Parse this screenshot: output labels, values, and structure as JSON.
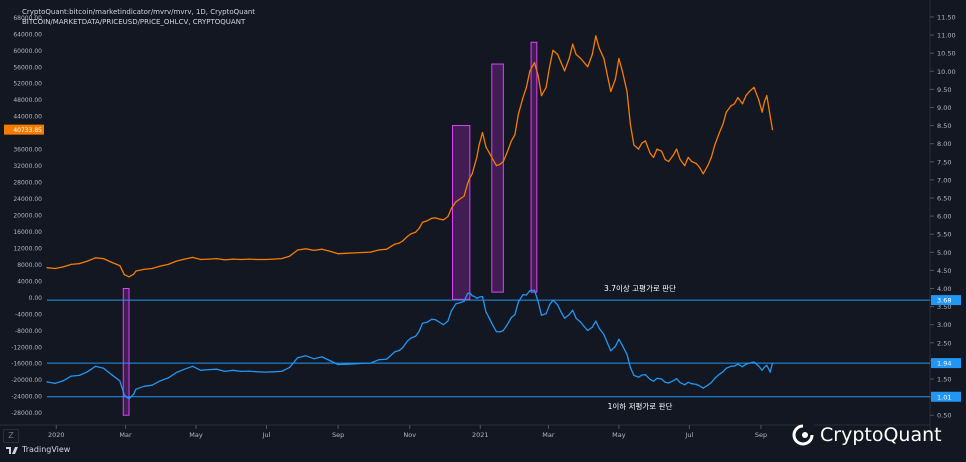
{
  "header": {
    "line1": "CryptoQuant:bitcoin/marketindicator/mvrv/mvrv, 1D, CryptoQuant",
    "line2": "BITCOIN/MARKETDATA/PRICEUSD/PRICE_OHLCV, CRYPTOQUANT"
  },
  "branding": {
    "tradingview": "TradingView",
    "cryptoquant": "CryptoQuant"
  },
  "colors": {
    "background": "#131722",
    "price": "#f57c00",
    "mvrv": "#2196f3",
    "highlight": "#9c27b0",
    "refline": "#2196f3"
  },
  "chart_data": {
    "type": "line",
    "x_ticks": [
      "2020",
      "Mar",
      "May",
      "Jul",
      "Sep",
      "Nov",
      "2021",
      "Mar",
      "May",
      "Jul",
      "Sep"
    ],
    "left_axis": {
      "ticks": [
        68000,
        64000,
        60000,
        56000,
        52000,
        48000,
        44000,
        36000,
        32000,
        28000,
        24000,
        20000,
        16000,
        12000,
        8000,
        4000,
        0,
        -4000,
        -8000,
        -12000,
        -16000,
        -20000,
        -24000,
        -28000
      ],
      "tick_labels": [
        "68000.00",
        "64000.00",
        "60000.00",
        "56000.00",
        "52000.00",
        "48000.00",
        "44000.00",
        "36000.00",
        "32000.00",
        "28000.00",
        "24000.00",
        "20000.00",
        "16000.00",
        "12000.00",
        "8000.00",
        "4000.00",
        "0.00",
        "-4000.00",
        "-8000.00",
        "-12000.00",
        "-16000.00",
        "-20000.00",
        "-24000.00",
        "-28000.00"
      ],
      "range": [
        -31000,
        71000
      ],
      "last_label": "40733.85"
    },
    "right_axis": {
      "ticks": [
        11.5,
        11.0,
        10.5,
        10.0,
        9.5,
        9.0,
        8.5,
        8.0,
        7.5,
        7.0,
        6.5,
        6.0,
        5.5,
        5.0,
        4.5,
        4.0,
        3.5,
        3.0,
        2.5,
        2.0,
        1.5,
        1.0,
        0.5
      ],
      "tick_labels": [
        "11.50",
        "11.00",
        "10.50",
        "10.00",
        "9.50",
        "9.00",
        "8.50",
        "8.00",
        "7.50",
        "7.00",
        "6.50",
        "6.00",
        "5.50",
        "5.00",
        "4.50",
        "4.00",
        "3.50",
        "3.00",
        "2.50",
        "2.00",
        "1.50",
        "1.00",
        "0.50"
      ],
      "range": [
        0.23,
        11.83
      ],
      "marker_labels": [
        "3.68",
        "1.94",
        "1.01"
      ]
    },
    "series": [
      {
        "name": "PRICE_OHLCV",
        "axis": "left",
        "x": [
          0,
          7,
          14,
          21,
          28,
          35,
          42,
          49,
          56,
          63,
          67,
          71,
          75,
          77,
          84,
          91,
          98,
          105,
          112,
          119,
          126,
          133,
          140,
          147,
          154,
          161,
          168,
          175,
          182,
          189,
          196,
          203,
          210,
          217,
          224,
          231,
          238,
          245,
          252,
          259,
          266,
          273,
          280,
          287,
          294,
          301,
          305,
          308,
          312,
          315,
          319,
          322,
          325,
          329,
          333,
          336,
          340,
          343,
          347,
          350,
          354,
          357,
          361,
          364,
          366,
          368,
          370,
          372,
          374,
          377,
          380,
          383,
          386,
          389,
          392,
          395,
          398,
          402,
          405,
          408,
          412,
          415,
          418,
          422,
          425,
          428,
          432,
          435,
          438,
          442,
          445,
          448,
          452,
          455,
          458,
          462,
          465,
          468,
          472,
          475,
          478,
          482,
          485,
          488,
          492,
          495,
          498,
          502,
          505,
          508,
          512,
          515,
          518,
          522,
          525,
          528,
          532,
          535,
          538,
          542,
          545,
          548,
          552,
          555,
          558,
          562,
          565,
          568,
          572,
          575,
          578,
          582,
          585,
          588,
          592,
          595,
          598,
          602,
          605,
          608,
          612,
          616,
          619,
          621,
          623,
          626,
          628
        ],
        "values": [
          7200,
          7000,
          7400,
          8000,
          8200,
          8800,
          9600,
          9400,
          8500,
          7700,
          5500,
          5000,
          5600,
          6400,
          6800,
          7000,
          7600,
          8000,
          8800,
          9300,
          9700,
          9200,
          9300,
          9400,
          9100,
          9300,
          9200,
          9300,
          9200,
          9200,
          9300,
          9400,
          10000,
          11500,
          11800,
          11400,
          11700,
          11200,
          10600,
          10700,
          10800,
          10900,
          11000,
          11500,
          11700,
          12900,
          13200,
          13700,
          14800,
          15400,
          15800,
          16700,
          18200,
          18600,
          19200,
          19300,
          19000,
          18800,
          19600,
          21600,
          23200,
          23800,
          24600,
          27500,
          29000,
          30000,
          32000,
          34000,
          37000,
          40000,
          36500,
          35000,
          33500,
          32000,
          32300,
          33000,
          35000,
          38000,
          39500,
          44500,
          48500,
          51000,
          55000,
          57000,
          54000,
          49000,
          51000,
          56000,
          60000,
          59000,
          57000,
          55000,
          58000,
          61500,
          59000,
          58000,
          57000,
          56000,
          59000,
          63500,
          60500,
          58000,
          54000,
          50000,
          53000,
          58000,
          55000,
          50000,
          42000,
          37000,
          36000,
          37500,
          38000,
          35000,
          34000,
          36000,
          35500,
          33500,
          33000,
          34500,
          36000,
          33500,
          32000,
          34000,
          33000,
          32500,
          31500,
          30000,
          32000,
          34000,
          37000,
          40000,
          42000,
          45000,
          46500,
          47000,
          48500,
          47000,
          49000,
          50000,
          51000,
          48000,
          45000,
          47500,
          49000,
          44000,
          40733
        ]
      },
      {
        "name": "mvrv",
        "axis": "right",
        "x": [
          0,
          7,
          14,
          21,
          28,
          35,
          42,
          49,
          56,
          63,
          67,
          71,
          75,
          77,
          84,
          91,
          98,
          105,
          112,
          119,
          126,
          133,
          140,
          147,
          154,
          161,
          168,
          175,
          182,
          189,
          196,
          203,
          210,
          217,
          224,
          231,
          238,
          245,
          252,
          259,
          266,
          273,
          280,
          287,
          294,
          301,
          305,
          308,
          312,
          315,
          319,
          322,
          325,
          329,
          333,
          336,
          340,
          343,
          347,
          350,
          354,
          357,
          361,
          364,
          366,
          368,
          370,
          372,
          374,
          377,
          380,
          383,
          386,
          389,
          392,
          395,
          398,
          402,
          405,
          408,
          412,
          415,
          418,
          422,
          425,
          428,
          432,
          435,
          438,
          442,
          445,
          448,
          452,
          455,
          458,
          462,
          465,
          468,
          472,
          475,
          478,
          482,
          485,
          488,
          492,
          495,
          498,
          502,
          505,
          508,
          512,
          515,
          518,
          522,
          525,
          528,
          532,
          535,
          538,
          542,
          545,
          548,
          552,
          555,
          558,
          562,
          565,
          568,
          572,
          575,
          578,
          582,
          585,
          588,
          592,
          595,
          598,
          602,
          605,
          608,
          612,
          616,
          619,
          621,
          623,
          626,
          628
        ],
        "values": [
          1.42,
          1.38,
          1.45,
          1.58,
          1.6,
          1.7,
          1.85,
          1.8,
          1.62,
          1.45,
          1.05,
          0.95,
          1.08,
          1.22,
          1.3,
          1.33,
          1.45,
          1.53,
          1.68,
          1.77,
          1.85,
          1.74,
          1.76,
          1.77,
          1.71,
          1.74,
          1.71,
          1.72,
          1.7,
          1.69,
          1.7,
          1.71,
          1.82,
          2.09,
          2.14,
          2.06,
          2.11,
          2.01,
          1.9,
          1.91,
          1.92,
          1.93,
          1.94,
          2.03,
          2.05,
          2.25,
          2.29,
          2.37,
          2.55,
          2.63,
          2.68,
          2.81,
          3.04,
          3.07,
          3.15,
          3.14,
          3.06,
          3.0,
          3.1,
          3.38,
          3.58,
          3.6,
          3.65,
          3.86,
          3.88,
          3.8,
          3.78,
          3.73,
          3.76,
          3.78,
          3.35,
          3.17,
          2.98,
          2.81,
          2.8,
          2.84,
          2.98,
          3.2,
          3.28,
          3.63,
          3.83,
          3.82,
          3.94,
          3.95,
          3.65,
          3.26,
          3.3,
          3.55,
          3.68,
          3.55,
          3.35,
          3.18,
          3.28,
          3.4,
          3.18,
          3.07,
          2.95,
          2.84,
          2.93,
          3.1,
          2.9,
          2.73,
          2.5,
          2.28,
          2.4,
          2.6,
          2.43,
          2.18,
          1.82,
          1.6,
          1.55,
          1.61,
          1.62,
          1.49,
          1.44,
          1.52,
          1.5,
          1.41,
          1.39,
          1.45,
          1.51,
          1.4,
          1.34,
          1.41,
          1.37,
          1.35,
          1.31,
          1.25,
          1.33,
          1.4,
          1.52,
          1.63,
          1.7,
          1.8,
          1.85,
          1.86,
          1.91,
          1.84,
          1.91,
          1.94,
          1.97,
          1.86,
          1.74,
          1.83,
          1.88,
          1.69,
          1.94
        ]
      }
    ],
    "reference_lines": [
      {
        "value": 3.68,
        "label": "3.7이상 고평가로 판단",
        "label_side": "above"
      },
      {
        "value": 1.94,
        "label": "",
        "label_side": "none"
      },
      {
        "value": 1.01,
        "label": "1이하 저평가로 판단",
        "label_side": "below"
      }
    ],
    "highlight_regions": [
      {
        "x_start": 66,
        "x_end": 71,
        "top": 4.0,
        "bottom": 0.5
      },
      {
        "x_start": 351,
        "x_end": 366,
        "top": 8.5,
        "bottom": 3.7
      },
      {
        "x_start": 385,
        "x_end": 395,
        "top": 10.2,
        "bottom": 3.9
      },
      {
        "x_start": 419,
        "x_end": 424,
        "top": 10.8,
        "bottom": 3.9
      }
    ]
  }
}
